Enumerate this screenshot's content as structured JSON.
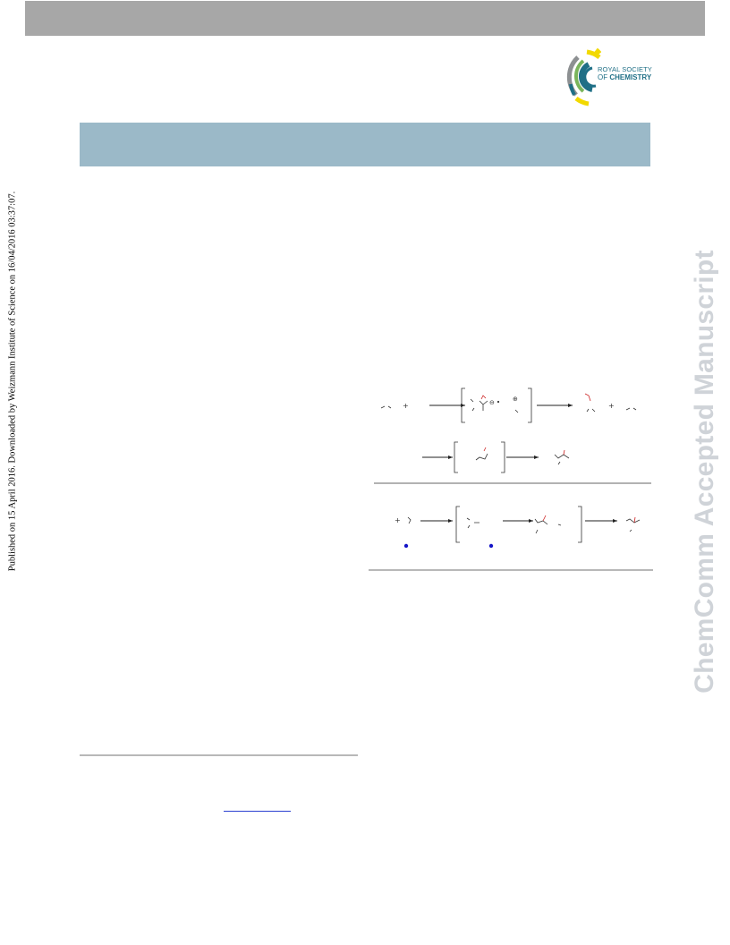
{
  "page": {
    "publisher_logo": {
      "name": "Royal Society of Chemistry",
      "line1": "ROYAL SOCIETY",
      "line2_prefix": "OF",
      "line2_bold": "CHEMISTRY",
      "colors": {
        "teal": "#1f6f86",
        "yellow": "#f2d900",
        "grey": "#8d9092",
        "green": "#7ab55c"
      }
    },
    "side_notice": "Published on 15 April 2016. Downloaded by Weizmann Institute of Science on 16/04/2016 03:37:07.",
    "watermark": "ChemComm Accepted Manuscript",
    "colors": {
      "top_bar": "#a7a7a7",
      "header_band": "#9bb9c8",
      "watermark": "#cfd3d8",
      "scheme_highlight": "#cc2222",
      "scheme_dot": "#1515c8",
      "link": "#2a3fd0"
    },
    "scheme_symbols": {
      "plus": "+",
      "anion_charge": "⊖",
      "cation_charge": "⊕"
    }
  }
}
